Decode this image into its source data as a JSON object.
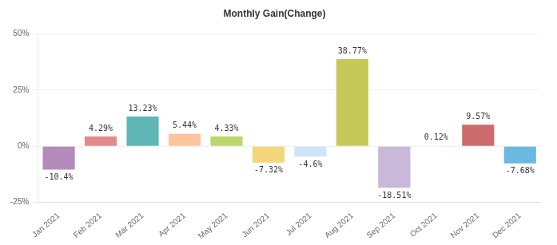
{
  "chart_data": {
    "type": "bar",
    "title": "Monthly Gain(Change)",
    "categories": [
      "Jan 2021",
      "Feb 2021",
      "Mar 2021",
      "Apr 2021",
      "May 2021",
      "Jun 2021",
      "Jul 2021",
      "Aug 2021",
      "Sep 2021",
      "Oct 2021",
      "Nov 2021",
      "Dec 2021"
    ],
    "values": [
      -10.4,
      4.29,
      13.23,
      5.44,
      4.33,
      -7.32,
      -4.6,
      38.77,
      -18.51,
      0.12,
      9.57,
      -7.68
    ],
    "value_labels": [
      "-10.4%",
      "4.29%",
      "13.23%",
      "5.44%",
      "4.33%",
      "-7.32%",
      "-4.6%",
      "38.77%",
      "-18.51%",
      "0.12%",
      "9.57%",
      "-7.68%"
    ],
    "colors": [
      "#b48bbb",
      "#e48a8a",
      "#5fb8b5",
      "#ffc49b",
      "#b8d86b",
      "#f5d77a",
      "#cfe5f7",
      "#c7c85a",
      "#c9b8d8",
      "#e6b0b0",
      "#cd6b6b",
      "#6bb8e0"
    ],
    "ylim": [
      -25,
      50
    ],
    "yticks": [
      {
        "value": -25,
        "label": "-25%"
      },
      {
        "value": 0,
        "label": "0%"
      },
      {
        "value": 25,
        "label": "25%"
      },
      {
        "value": 50,
        "label": "50%"
      }
    ],
    "grid": true,
    "data_labels": true
  }
}
